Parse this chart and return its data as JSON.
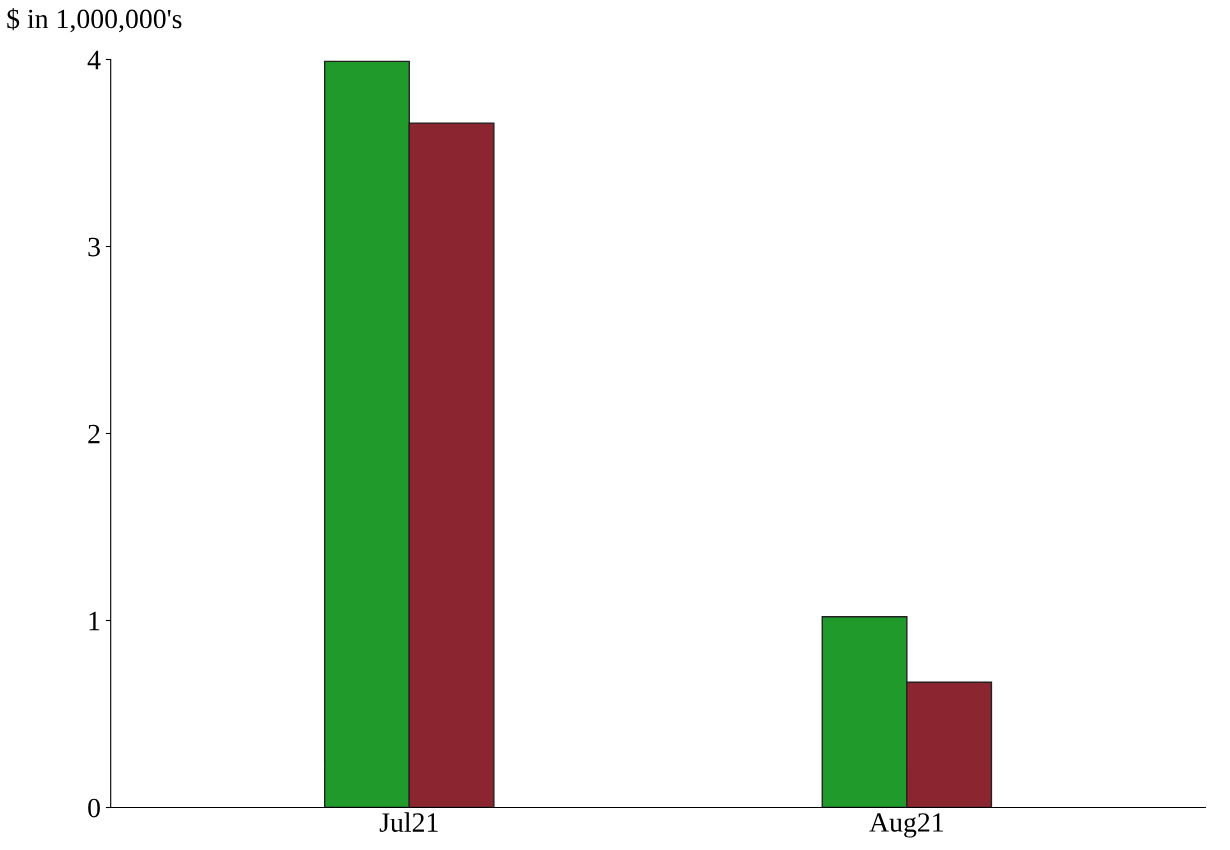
{
  "chart_data": {
    "type": "bar",
    "ylabel": "$ in 1,000,000's",
    "categories": [
      "Jul21",
      "Aug21"
    ],
    "series": [
      {
        "color": "#1f9a2b",
        "values": [
          3.99,
          1.02
        ]
      },
      {
        "color": "#8b2630",
        "values": [
          3.66,
          0.67
        ]
      }
    ],
    "ylim": [
      0,
      4
    ],
    "yticks": [
      0,
      1,
      2,
      3,
      4
    ],
    "grid": false,
    "legend": false
  }
}
